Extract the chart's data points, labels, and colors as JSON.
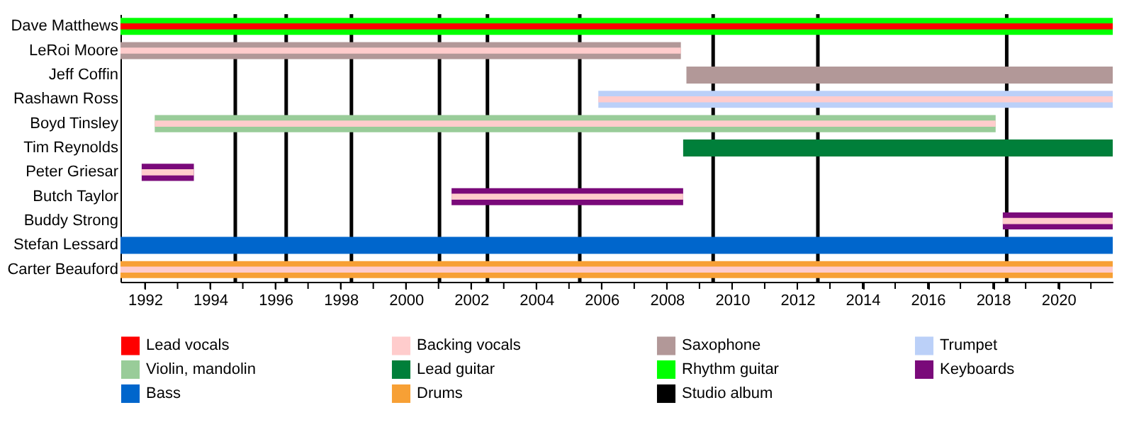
{
  "chart_data": {
    "type": "bar",
    "orientation": "horizontal",
    "legend": "bottom",
    "grid": false,
    "categories": [
      "Dave Matthews",
      "LeRoi Moore",
      "Jeff Coffin",
      "Rashawn Ross",
      "Boyd Tinsley",
      "Tim Reynolds",
      "Peter Griesar",
      "Butch Taylor",
      "Buddy Strong",
      "Stefan Lessard",
      "Carter Beauford"
    ],
    "xlim": [
      1991.25,
      2021.67
    ],
    "xticks": [
      1992,
      {
        "value": 1993,
        "label": null
      },
      1994,
      {
        "value": 1995,
        "label": null
      },
      1996,
      {
        "value": 1997,
        "label": null
      },
      1998,
      {
        "value": 1999,
        "label": null
      },
      2000,
      {
        "value": 2001,
        "label": null
      },
      2002,
      {
        "value": 2003,
        "label": null
      },
      2004,
      {
        "value": 2005,
        "label": null
      },
      2006,
      {
        "value": 2007,
        "label": null
      },
      2008,
      {
        "value": 2009,
        "label": null
      },
      2010,
      {
        "value": 2011,
        "label": null
      },
      2012,
      {
        "value": 2013,
        "label": null
      },
      2014,
      {
        "value": 2015,
        "label": null
      },
      2016,
      {
        "value": 2017,
        "label": null
      },
      2018,
      {
        "value": 2019,
        "label": null
      },
      2020,
      {
        "value": 2021,
        "label": null
      }
    ],
    "series": [
      {
        "name": "Lead vocals",
        "color": "#ff0000",
        "base": [
          1991.25,
          null,
          null,
          null,
          null,
          null,
          null,
          null,
          null,
          null,
          null
        ],
        "values": [
          30.42,
          null,
          null,
          null,
          null,
          null,
          null,
          null,
          null,
          null,
          null
        ]
      },
      {
        "name": "Backing vocals",
        "color": "#ffcccc",
        "base": [
          null,
          1991.25,
          null,
          2005.9,
          1992.3,
          null,
          1991.9,
          2001.4,
          2018.3,
          null,
          1991.25
        ],
        "values": [
          null,
          17.18,
          null,
          15.77,
          25.78,
          null,
          1.6,
          7.1,
          3.37,
          null,
          30.42
        ]
      },
      {
        "name": "Saxophone",
        "color": "#b29898",
        "base": [
          null,
          1991.25,
          2008.6,
          null,
          null,
          null,
          null,
          null,
          null,
          null,
          null
        ],
        "values": [
          null,
          17.18,
          13.07,
          null,
          null,
          null,
          null,
          null,
          null,
          null,
          null
        ]
      },
      {
        "name": "Trumpet",
        "color": "#bbd0f8",
        "base": [
          null,
          null,
          null,
          2005.9,
          null,
          null,
          null,
          null,
          null,
          null,
          null
        ],
        "values": [
          null,
          null,
          null,
          15.77,
          null,
          null,
          null,
          null,
          null,
          null,
          null
        ]
      },
      {
        "name": "Violin, mandolin",
        "color": "#99cc99",
        "base": [
          null,
          null,
          null,
          null,
          1992.3,
          null,
          null,
          null,
          null,
          null,
          null
        ],
        "values": [
          null,
          null,
          null,
          null,
          25.78,
          null,
          null,
          null,
          null,
          null,
          null
        ]
      },
      {
        "name": "Lead guitar",
        "color": "#007f3a",
        "base": [
          null,
          null,
          null,
          null,
          null,
          2008.5,
          null,
          null,
          null,
          null,
          null
        ],
        "values": [
          null,
          null,
          null,
          null,
          null,
          13.17,
          null,
          null,
          null,
          null,
          null
        ]
      },
      {
        "name": "Rhythm guitar",
        "color": "#00ff00",
        "base": [
          1991.25,
          null,
          null,
          null,
          null,
          null,
          null,
          null,
          null,
          null,
          null
        ],
        "values": [
          30.42,
          null,
          null,
          null,
          null,
          null,
          null,
          null,
          null,
          null,
          null
        ]
      },
      {
        "name": "Keyboards",
        "color": "#7a0a7a",
        "base": [
          null,
          null,
          null,
          null,
          null,
          null,
          1991.9,
          2001.4,
          2018.3,
          null,
          null
        ],
        "values": [
          null,
          null,
          null,
          null,
          null,
          null,
          1.6,
          7.1,
          3.37,
          null,
          null
        ]
      },
      {
        "name": "Bass",
        "color": "#0066cc",
        "base": [
          null,
          null,
          null,
          null,
          null,
          null,
          null,
          null,
          null,
          1991.25,
          null
        ],
        "values": [
          null,
          null,
          null,
          null,
          null,
          null,
          null,
          null,
          null,
          30.42,
          null
        ]
      },
      {
        "name": "Drums",
        "color": "#f7a035",
        "base": [
          null,
          null,
          null,
          null,
          null,
          null,
          null,
          null,
          null,
          null,
          1991.25
        ],
        "values": [
          null,
          null,
          null,
          null,
          null,
          null,
          null,
          null,
          null,
          null,
          30.42
        ]
      }
    ],
    "ref_lines": [
      {
        "axis": "x",
        "value": 1994.77,
        "label": "Studio album",
        "color": "#000000"
      },
      {
        "axis": "x",
        "value": 1996.33,
        "color": "#000000"
      },
      {
        "axis": "x",
        "value": 1998.33,
        "color": "#000000"
      },
      {
        "axis": "x",
        "value": 2001.03,
        "color": "#000000"
      },
      {
        "axis": "x",
        "value": 2002.5,
        "color": "#000000"
      },
      {
        "axis": "x",
        "value": 2005.33,
        "color": "#000000"
      },
      {
        "axis": "x",
        "value": 2009.42,
        "color": "#000000"
      },
      {
        "axis": "x",
        "value": 2012.63,
        "color": "#000000"
      },
      {
        "axis": "x",
        "value": 2018.42,
        "color": "#000000"
      }
    ]
  }
}
